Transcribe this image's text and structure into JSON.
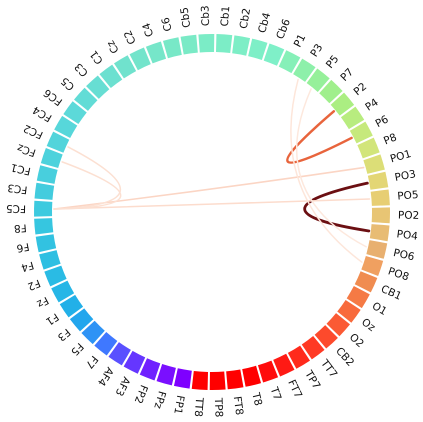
{
  "chart_data": {
    "type": "chord",
    "title": "",
    "segments": [
      "Cb6",
      "P1",
      "P3",
      "P5",
      "P7",
      "P2",
      "P4",
      "P6",
      "P8",
      "PO1",
      "PO3",
      "PO5",
      "PO2",
      "PO4",
      "PO6",
      "PO8",
      "CB1",
      "O1",
      "Oz",
      "O2",
      "CB2",
      "TT7",
      "TP7",
      "FT7",
      "T7",
      "T8",
      "FT8",
      "TP8",
      "TT8",
      "FP1",
      "FPz",
      "FP2",
      "AF3",
      "AF4",
      "F7",
      "F5",
      "F3",
      "F1",
      "Fz",
      "F2",
      "F4",
      "F6",
      "F8",
      "FC5",
      "FC3",
      "FC1",
      "FCz",
      "FC2",
      "FC4",
      "FC6",
      "C5",
      "C3",
      "C1",
      "Cz",
      "C2",
      "C4",
      "C6",
      "Cb5",
      "Cb3",
      "Cb1",
      "Cb2",
      "Cb4"
    ],
    "segment_colors": [
      "#7ff0c8",
      "#86f0b8",
      "#8df0aa",
      "#96f09a",
      "#a0ef8c",
      "#abee82",
      "#b8ec7f",
      "#c6e97c",
      "#d2e57a",
      "#dcde77",
      "#e3d675",
      "#e7ce73",
      "#e8c574",
      "#e8bc74",
      "#e8b070",
      "#f0a060",
      "#f08c50",
      "#f57a45",
      "#f86a3c",
      "#fb5a34",
      "#fd4a2c",
      "#ff3a24",
      "#ff2a1c",
      "#ff1a14",
      "#ff0c0c",
      "#ff0000",
      "#ff0000",
      "#ff0000",
      "#ff0000",
      "#7e00ff",
      "#7a0fff",
      "#7020ff",
      "#6536ff",
      "#5a50ff",
      "#3f78ff",
      "#2e93f5",
      "#23a6ed",
      "#22b0e8",
      "#26b6e6",
      "#2abbe4",
      "#2ebfe2",
      "#32c2e1",
      "#36c6e0",
      "#3dcadf",
      "#43ccde",
      "#48cfdd",
      "#4dd2dc",
      "#52d4db",
      "#57d7da",
      "#5cd9d9",
      "#62dcd6",
      "#67ded3",
      "#6ce0d0",
      "#70e2cd",
      "#73e4cb",
      "#76e6c9",
      "#78e8c7",
      "#7aeac6",
      "#7becc6",
      "#7cedc6",
      "#7deec6",
      "#7eefc7"
    ],
    "links": [
      {
        "source": "P6",
        "target": "P2",
        "weight": 0.8,
        "color": "#e8643c"
      },
      {
        "source": "PO3",
        "target": "PO4",
        "weight": 1.0,
        "color": "#6b0f12"
      },
      {
        "source": "PO1",
        "target": "FC5",
        "weight": 0.25,
        "color": "#fbd5c4"
      },
      {
        "source": "PO5",
        "target": "FC5",
        "weight": 0.22,
        "color": "#fcdccd"
      },
      {
        "source": "FC5",
        "target": "FCz",
        "weight": 0.2,
        "color": "#fce0d2"
      },
      {
        "source": "FC5",
        "target": "FC2",
        "weight": 0.2,
        "color": "#fce0d2"
      },
      {
        "source": "PO8",
        "target": "P3",
        "weight": 0.18,
        "color": "#fde6da"
      },
      {
        "source": "P5",
        "target": "PO6",
        "weight": 0.15,
        "color": "#fde8dd"
      }
    ]
  }
}
